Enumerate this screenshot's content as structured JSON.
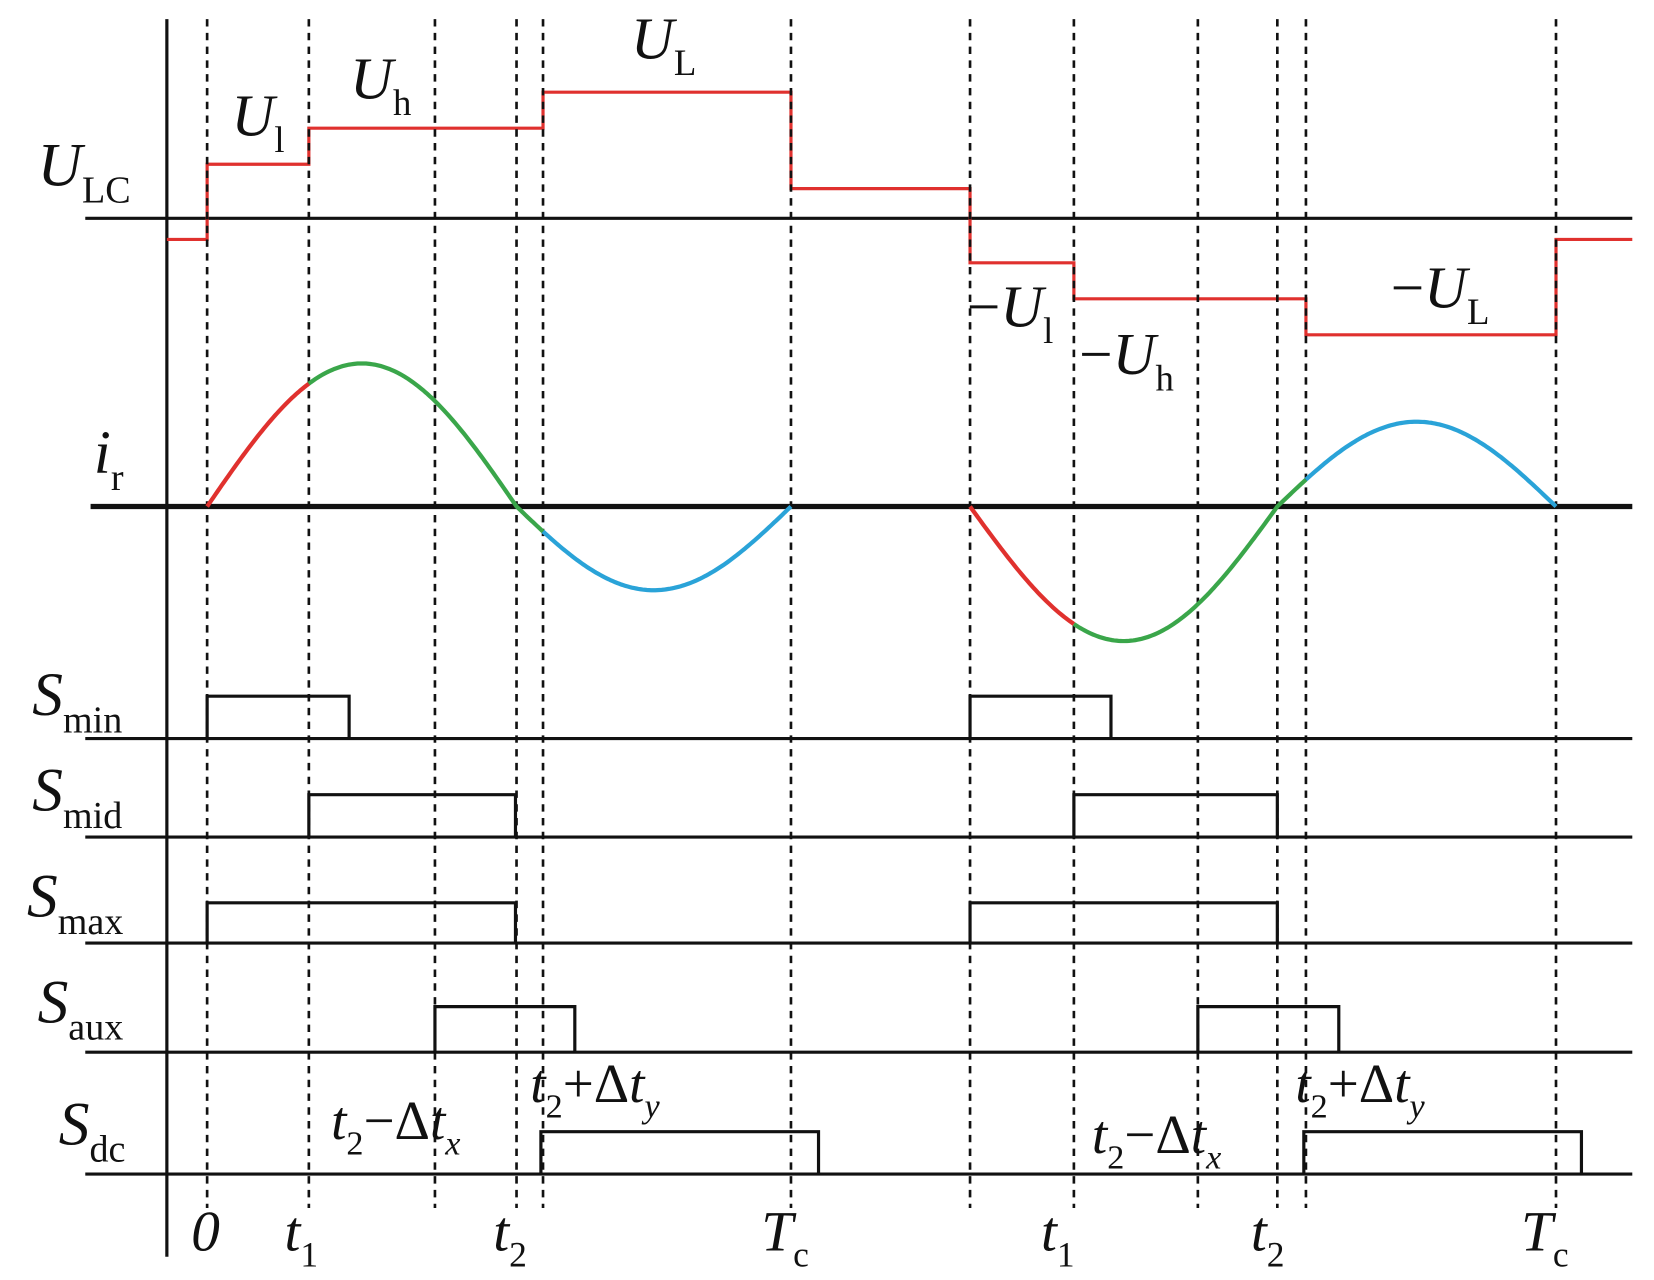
{
  "signals": [
    {
      "main": "U",
      "sub": "LC"
    },
    {
      "main": "i",
      "sub": "r"
    },
    {
      "main": "S",
      "sub": "min"
    },
    {
      "main": "S",
      "sub": "mid"
    },
    {
      "main": "S",
      "sub": "max"
    },
    {
      "main": "S",
      "sub": "aux"
    },
    {
      "main": "S",
      "sub": "dc"
    }
  ],
  "levels": [
    {
      "main": "U",
      "sub": "l"
    },
    {
      "main": "U",
      "sub": "h"
    },
    {
      "main": "U",
      "sub": "L"
    },
    {
      "sign": "−",
      "main": "U",
      "sub": "l"
    },
    {
      "sign": "−",
      "main": "U",
      "sub": "h"
    },
    {
      "sign": "−",
      "main": "U",
      "sub": "L"
    }
  ],
  "time_labels": [
    {
      "main": "0"
    },
    {
      "main": "t",
      "sub": "1"
    },
    {
      "main": "t",
      "sub": "2"
    },
    {
      "main": "T",
      "sub": "c"
    },
    {
      "main": "t",
      "sub": "1"
    },
    {
      "main": "t",
      "sub": "2"
    },
    {
      "main": "T",
      "sub": "c"
    }
  ],
  "annotations": [
    {
      "main": "t",
      "sub": "2",
      "op": "−Δ",
      "main2": "t",
      "sub2": "x"
    },
    {
      "main": "t",
      "sub": "2",
      "op": "+Δ",
      "main2": "t",
      "sub2": "y"
    },
    {
      "main": "t",
      "sub": "2",
      "op": "−Δ",
      "main2": "t",
      "sub2": "x"
    },
    {
      "main": "t",
      "sub": "2",
      "op": "+Δ",
      "main2": "t",
      "sub2": "y"
    }
  ]
}
